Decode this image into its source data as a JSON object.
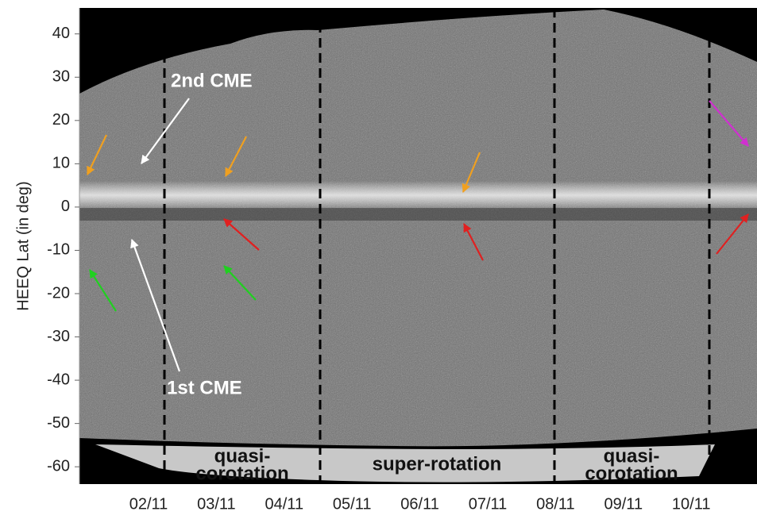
{
  "chart_data": {
    "type": "image",
    "ylabel": "HEEQ Lat (in deg)",
    "ylim": [
      -64,
      46
    ],
    "yticks": [
      -60,
      -50,
      -40,
      -30,
      -20,
      -10,
      0,
      10,
      20,
      30,
      40
    ],
    "x_tick_labels": [
      "02/11",
      "03/11",
      "04/11",
      "05/11",
      "06/11",
      "07/11",
      "08/11",
      "09/11",
      "10/11"
    ],
    "annotations": [
      "2nd CME",
      "1st CME"
    ],
    "regions": [
      [
        "quasi-",
        "corotation"
      ],
      [
        "super-rotation"
      ],
      [
        "quasi-",
        "corotation"
      ]
    ]
  }
}
